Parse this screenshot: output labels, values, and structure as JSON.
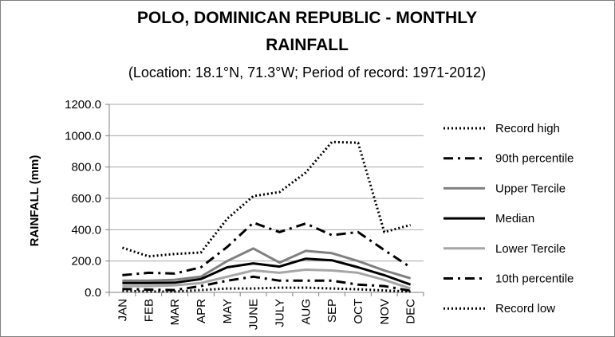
{
  "chart_data": {
    "type": "line",
    "title_line1": "POLO, DOMINICAN REPUBLIC - MONTHLY",
    "title_line2": "RAINFALL",
    "subtitle": "(Location: 18.1°N, 71.3°W; Period of record: 1971-2012)",
    "xlabel": "",
    "ylabel": "RAINFALL (mm)",
    "ylim": [
      0,
      1200
    ],
    "y_ticks": [
      "0.0",
      "200.0",
      "400.0",
      "600.0",
      "800.0",
      "1000.0",
      "1200.0"
    ],
    "categories": [
      "JAN",
      "FEB",
      "MAR",
      "APR",
      "MAY",
      "JUNE",
      "JULY",
      "AUG",
      "SEP",
      "OCT",
      "NOV",
      "DEC"
    ],
    "grid": "horizontal",
    "legend_position": "right",
    "series": [
      {
        "name": "Record high",
        "color": "#000000",
        "style": "dotted",
        "values": [
          285,
          230,
          245,
          255,
          470,
          615,
          640,
          765,
          960,
          955,
          385,
          430
        ]
      },
      {
        "name": "90th percentile",
        "color": "#000000",
        "style": "dash-dot",
        "values": [
          110,
          125,
          120,
          160,
          290,
          445,
          385,
          440,
          365,
          385,
          270,
          160
        ]
      },
      {
        "name": "Upper Tercile",
        "color": "#808080",
        "style": "solid",
        "values": [
          75,
          75,
          80,
          100,
          200,
          280,
          190,
          265,
          250,
          200,
          140,
          90
        ]
      },
      {
        "name": "Median",
        "color": "#000000",
        "style": "solid",
        "values": [
          60,
          60,
          62,
          85,
          160,
          185,
          165,
          215,
          205,
          160,
          110,
          50
        ]
      },
      {
        "name": "Lower Tercile",
        "color": "#a6a6a6",
        "style": "solid",
        "values": [
          40,
          40,
          45,
          60,
          100,
          140,
          125,
          145,
          140,
          125,
          80,
          25
        ]
      },
      {
        "name": "10th percentile",
        "color": "#000000",
        "style": "dash-dot",
        "values": [
          22,
          18,
          15,
          40,
          75,
          100,
          75,
          75,
          75,
          50,
          40,
          10
        ]
      },
      {
        "name": "Record low",
        "color": "#000000",
        "style": "dotted",
        "values": [
          10,
          5,
          5,
          15,
          25,
          25,
          30,
          30,
          25,
          20,
          12,
          5
        ]
      }
    ]
  }
}
